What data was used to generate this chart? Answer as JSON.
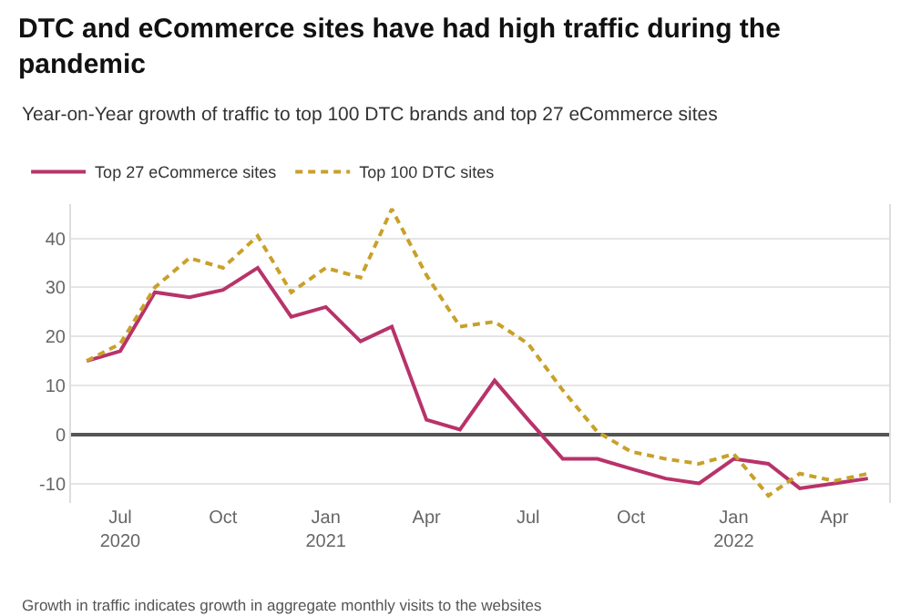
{
  "chart_data": {
    "type": "line",
    "title": "DTC and eCommerce sites have had high traffic during the\npandemic",
    "subtitle": "Year-on-Year growth of traffic to top 100 DTC brands and top 27 eCommerce sites",
    "x": [
      "2020-06",
      "2020-07",
      "2020-08",
      "2020-09",
      "2020-10",
      "2020-11",
      "2020-12",
      "2021-01",
      "2021-02",
      "2021-03",
      "2021-04",
      "2021-05",
      "2021-06",
      "2021-07",
      "2021-08",
      "2021-09",
      "2021-10",
      "2021-11",
      "2021-12",
      "2022-01",
      "2022-02",
      "2022-03",
      "2022-04",
      "2022-05"
    ],
    "series": [
      {
        "name": "Top 27 eCommerce sites",
        "color": "#b8336a",
        "line_style": "solid",
        "values": [
          15,
          17,
          29,
          28,
          29.5,
          34,
          24,
          26,
          19,
          22,
          3,
          1,
          11,
          3,
          -5,
          -5,
          -7,
          -9,
          -10,
          -5,
          -6,
          -11,
          -10,
          -9
        ]
      },
      {
        "name": "Top 100 DTC sites",
        "color": "#c9a02a",
        "line_style": "dashed",
        "values": [
          15,
          18.5,
          30,
          36,
          34,
          40.5,
          29,
          34,
          32,
          46,
          32.5,
          22,
          23,
          18.5,
          9,
          0.5,
          -3.5,
          -5,
          -6,
          -4,
          -12.5,
          -8,
          -9.5,
          -8
        ]
      }
    ],
    "xlim": [
      "2020-05-18",
      "2022-05-20"
    ],
    "xticks": [
      {
        "value": "2020-07",
        "label": "Jul\n2020"
      },
      {
        "value": "2020-10",
        "label": "Oct"
      },
      {
        "value": "2021-01",
        "label": "Jan\n2021"
      },
      {
        "value": "2021-04",
        "label": "Apr"
      },
      {
        "value": "2021-07",
        "label": "Jul"
      },
      {
        "value": "2021-10",
        "label": "Oct"
      },
      {
        "value": "2022-01",
        "label": "Jan\n2022"
      },
      {
        "value": "2022-04",
        "label": "Apr"
      }
    ],
    "ylim": [
      -14,
      47
    ],
    "yticks": [
      -10,
      0,
      10,
      20,
      30,
      40
    ],
    "grid": "y",
    "legend": "top left",
    "annotations": [
      "Growth in traffic indicates growth in aggregate monthly visits to the websites"
    ]
  }
}
